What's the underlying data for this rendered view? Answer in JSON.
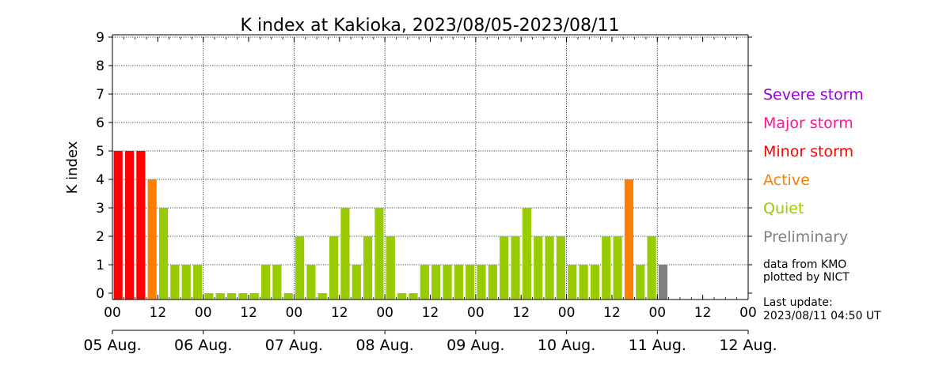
{
  "chart_data": {
    "type": "bar",
    "title": "K index at Kakioka, 2023/08/05-2023/08/11",
    "xlabel": "",
    "ylabel": "K index",
    "ylim": [
      0,
      9
    ],
    "yticks": [
      "0",
      "1",
      "2",
      "3",
      "4",
      "5",
      "6",
      "7",
      "8",
      "9"
    ],
    "x_hour_ticks": [
      "00",
      "12",
      "00",
      "12",
      "00",
      "12",
      "00",
      "12",
      "00",
      "12",
      "00",
      "12",
      "00",
      "12",
      "00"
    ],
    "x_date_ticks": [
      "05 Aug.",
      "06 Aug.",
      "07 Aug.",
      "08 Aug.",
      "09 Aug.",
      "10 Aug.",
      "11 Aug.",
      "12 Aug."
    ],
    "grid": true,
    "interval_hours": 3,
    "days_span": 7,
    "values": [
      5,
      5,
      5,
      4,
      3,
      1,
      1,
      1,
      0,
      0,
      0,
      0,
      0,
      1,
      1,
      0,
      2,
      1,
      0,
      2,
      3,
      1,
      2,
      3,
      2,
      0,
      0,
      1,
      1,
      1,
      1,
      1,
      1,
      1,
      2,
      2,
      3,
      2,
      2,
      2,
      1,
      1,
      1,
      2,
      2,
      4,
      1,
      2,
      1
    ],
    "bar_status": [
      "final",
      "final",
      "final",
      "final",
      "final",
      "final",
      "final",
      "final",
      "final",
      "final",
      "final",
      "final",
      "final",
      "final",
      "final",
      "final",
      "final",
      "final",
      "final",
      "final",
      "final",
      "final",
      "final",
      "final",
      "final",
      "final",
      "final",
      "final",
      "final",
      "final",
      "final",
      "final",
      "final",
      "final",
      "final",
      "final",
      "final",
      "final",
      "final",
      "final",
      "final",
      "final",
      "final",
      "final",
      "final",
      "final",
      "final",
      "final",
      "preliminary"
    ],
    "legend": [
      {
        "name": "Severe storm",
        "color": "#9400d3"
      },
      {
        "name": "Major storm",
        "color": "#ff1493"
      },
      {
        "name": "Minor storm",
        "color": "#ff0000"
      },
      {
        "name": "Active",
        "color": "#ff7f00"
      },
      {
        "name": "Quiet",
        "color": "#99cc00"
      },
      {
        "name": "Preliminary",
        "color": "#808080"
      }
    ],
    "legend_position": "right"
  },
  "notes": {
    "source_line1": "data from KMO",
    "source_line2": "plotted by NICT",
    "update_line1": "Last update:",
    "update_line2": "2023/08/11 04:50 UT"
  }
}
